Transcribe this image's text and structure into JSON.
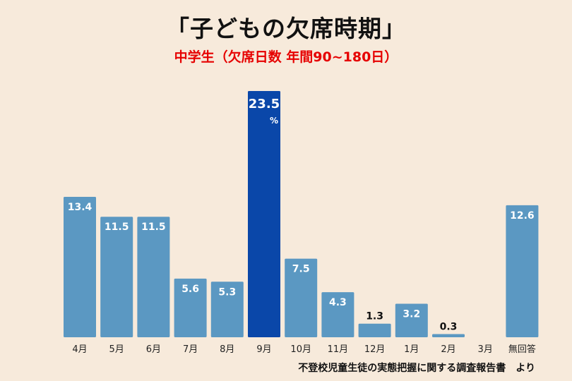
{
  "header": {
    "title": "「子どもの欠席時期」",
    "subtitle": "中学生（欠席日数 年間90~180日）",
    "source": "不登校児童生徒の実態把握に関する調査報告書　より"
  },
  "colors": {
    "bar": "#5b98c2",
    "highlight": "#0a47a9",
    "background": "#f7eadb",
    "subtitle": "#e60000"
  },
  "chart_data": {
    "type": "bar",
    "title": "「子どもの欠席時期」",
    "subtitle": "中学生（欠席日数 年間90~180日）",
    "categories": [
      "4月",
      "5月",
      "6月",
      "7月",
      "8月",
      "9月",
      "10月",
      "11月",
      "12月",
      "1月",
      "2月",
      "3月",
      "無回答"
    ],
    "values": [
      13.4,
      11.5,
      11.5,
      5.6,
      5.3,
      23.5,
      7.5,
      4.3,
      1.3,
      3.2,
      0.3,
      0,
      12.6
    ],
    "labels": [
      "13.4",
      "11.5",
      "11.5",
      "5.6",
      "5.3",
      "23.5",
      "7.5",
      "4.3",
      "1.3",
      "3.2",
      "0.3",
      "",
      "12.6"
    ],
    "highlight_index": 5,
    "highlight_unit": "%",
    "ylim": [
      0,
      23.5
    ],
    "xlabel": "",
    "ylabel": "",
    "grid": false,
    "legend": "none"
  }
}
